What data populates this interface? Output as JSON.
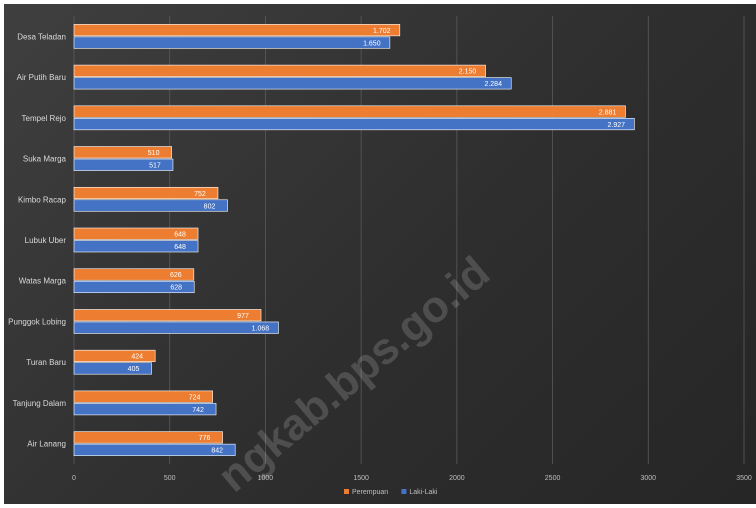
{
  "chart_data": {
    "type": "bar",
    "orientation": "horizontal",
    "categories": [
      "Desa Teladan",
      "Air Putih Baru",
      "Tempel Rejo",
      "Suka Marga",
      "Kimbo Racap",
      "Lubuk Uber",
      "Watas Marga",
      "Punggok Lobing",
      "Turan Baru",
      "Tanjung Dalam",
      "Air Lanang"
    ],
    "series": [
      {
        "name": "Perempuan",
        "color": "#ed7d31",
        "values": [
          1702,
          2150,
          2881,
          510,
          752,
          648,
          626,
          977,
          424,
          724,
          776
        ],
        "labels": [
          "1.702",
          "2.150",
          "2.881",
          "510",
          "752",
          "648",
          "626",
          "977",
          "424",
          "724",
          "776"
        ]
      },
      {
        "name": "Laki-Laki",
        "color": "#4472c4",
        "values": [
          1650,
          2284,
          2927,
          517,
          802,
          648,
          628,
          1068,
          405,
          742,
          842
        ],
        "labels": [
          "1.650",
          "2.284",
          "2.927",
          "517",
          "802",
          "648",
          "628",
          "1.068",
          "405",
          "742",
          "842"
        ]
      }
    ],
    "xlim": [
      0,
      3500
    ],
    "xticks": [
      "0",
      "500",
      "1000",
      "1500",
      "2000",
      "2500",
      "3000",
      "3500"
    ],
    "grid": true,
    "legend_position": "bottom-right"
  },
  "watermark": "ngkab.bps.go.id"
}
